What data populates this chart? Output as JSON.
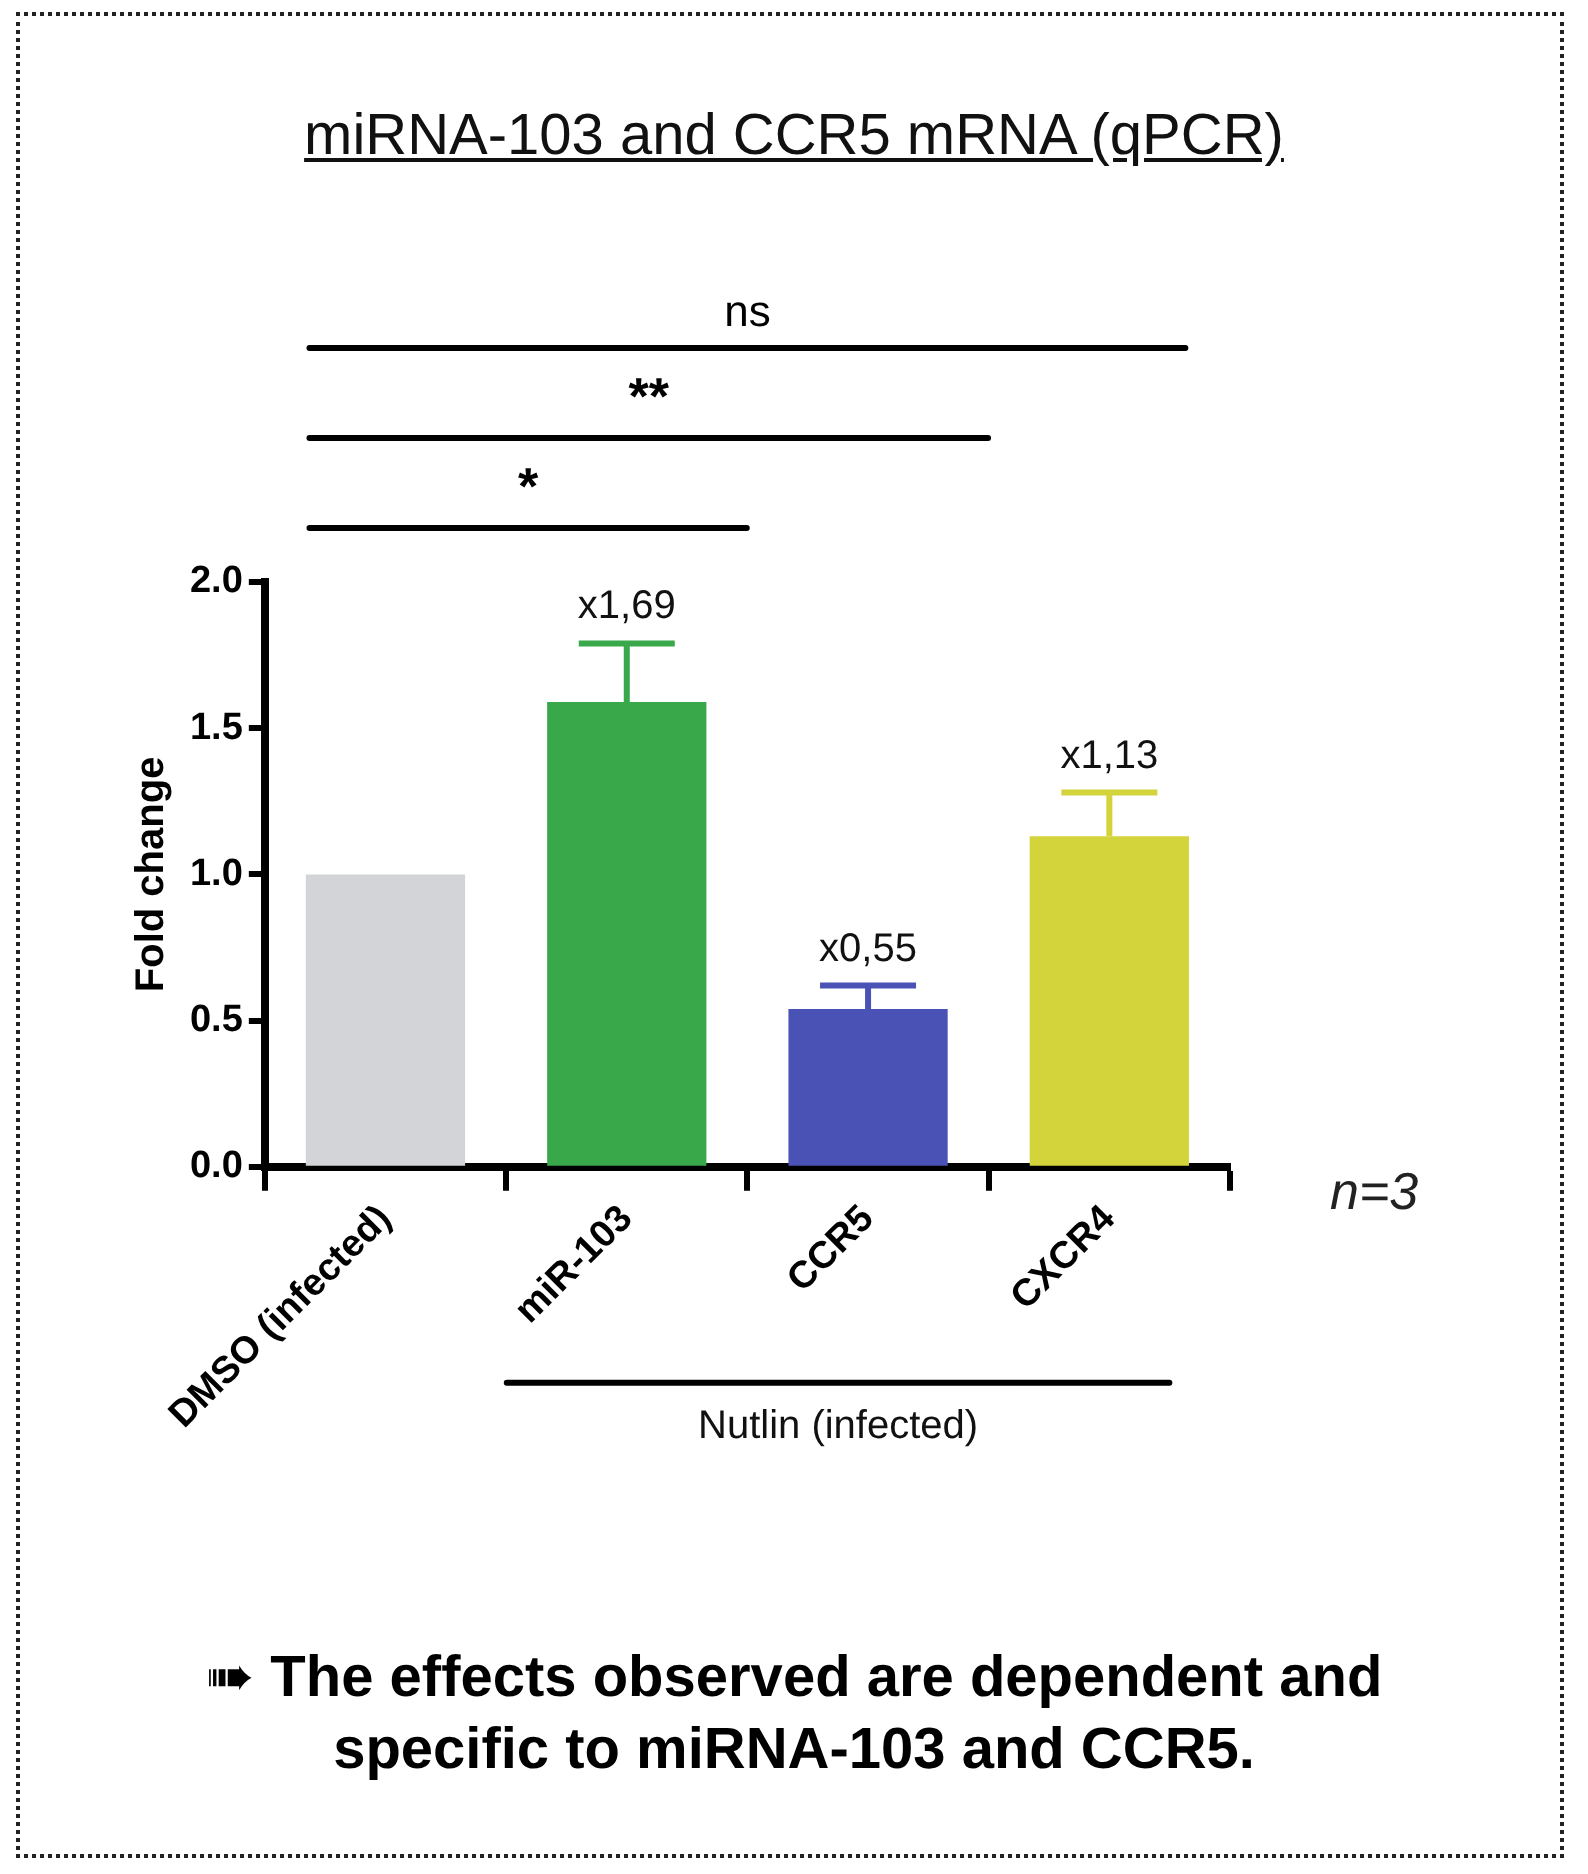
{
  "chart_data": {
    "type": "bar",
    "title": "miRNA-103 and CCR5 mRNA (qPCR)",
    "ylabel": "Fold change",
    "categories": [
      "DMSO (infected)",
      "miR-103",
      "CCR5",
      "CXCR4"
    ],
    "values": [
      1.0,
      1.59,
      0.54,
      1.13
    ],
    "colors": [
      "#d3d4d8",
      "#38a84a",
      "#4a53b5",
      "#d3d43c"
    ],
    "errors": [
      null,
      [
        1.59,
        1.79
      ],
      [
        0.54,
        0.62
      ],
      [
        1.13,
        1.28
      ]
    ],
    "value_labels": [
      null,
      "x1,69",
      "x0,55",
      "x1,13"
    ],
    "ylim": [
      0,
      2
    ],
    "yticks": [
      {
        "value": 0,
        "label": "0.0"
      },
      {
        "value": 0.5,
        "label": "0.5"
      },
      {
        "value": 1,
        "label": "1.0"
      },
      {
        "value": 1.5,
        "label": "1.5"
      },
      {
        "value": 2,
        "label": "2.0"
      }
    ],
    "grid": false,
    "annotations": [
      "*",
      "**",
      "ns",
      "n=3",
      "Nutlin (infected)",
      "➠ The effects observed are dependent and specific to miRNA-103 and CCR5."
    ]
  }
}
